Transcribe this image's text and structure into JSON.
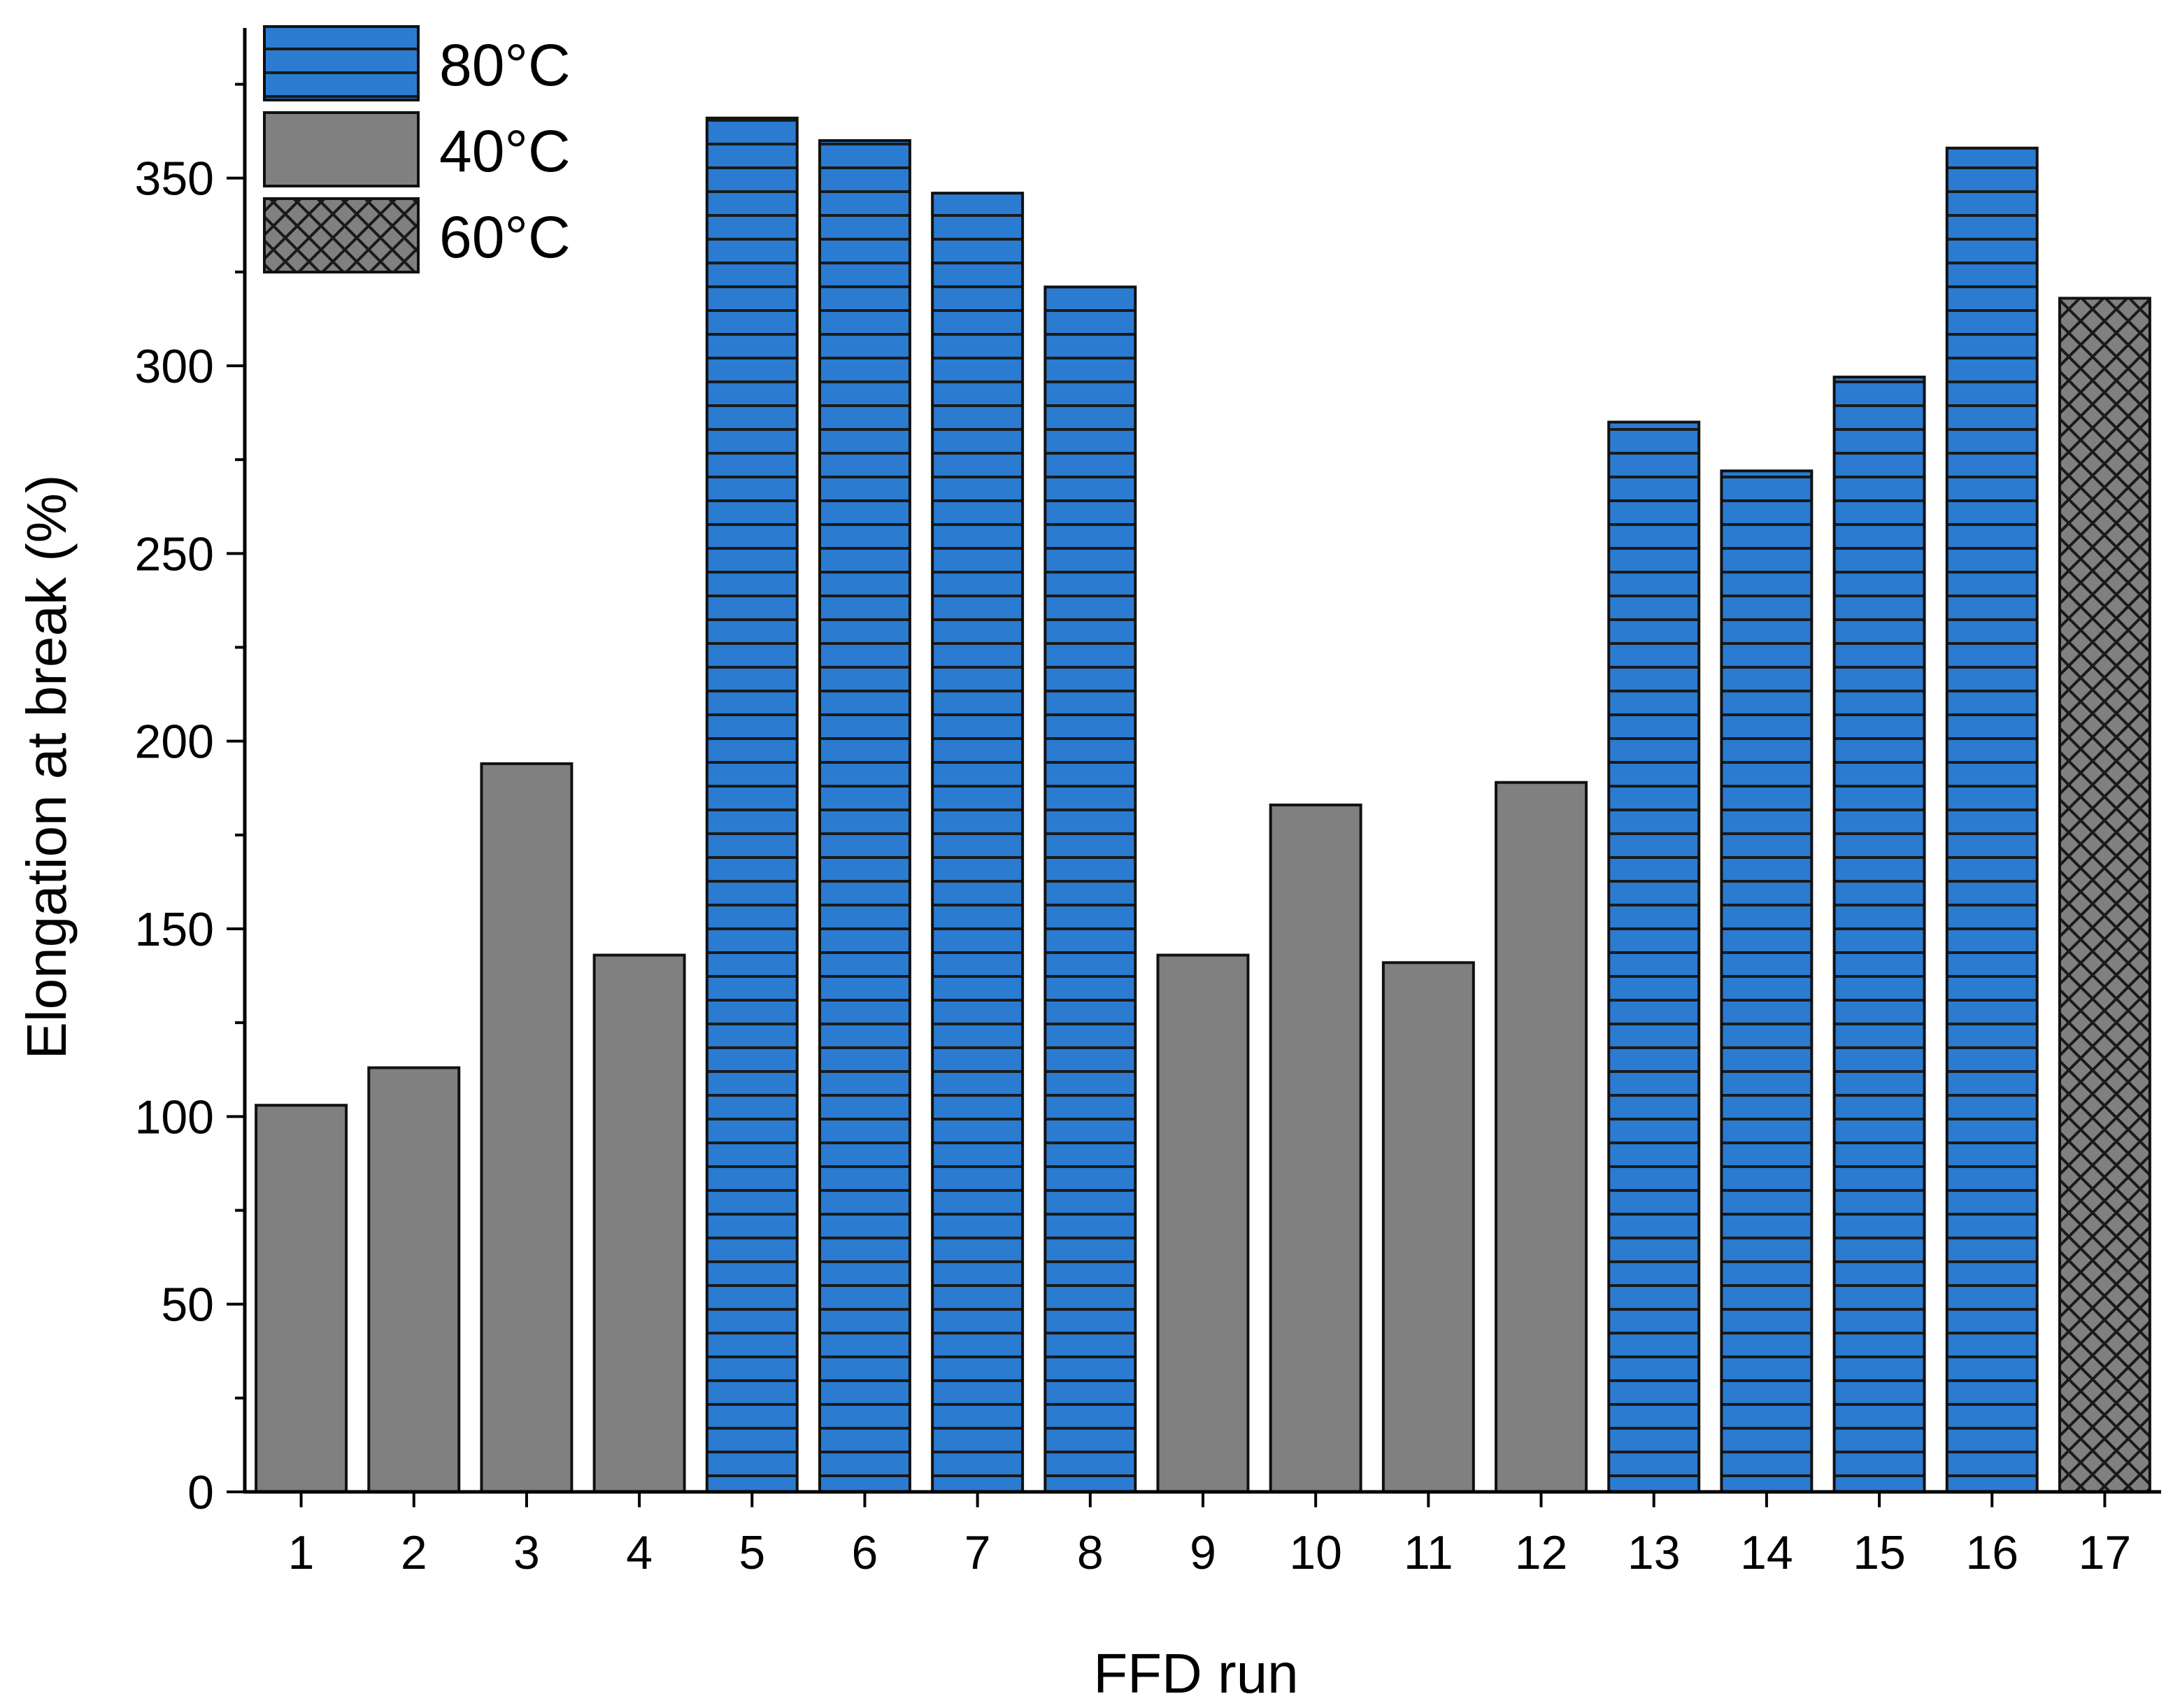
{
  "chart_data": {
    "type": "bar",
    "title": "",
    "xlabel": "FFD run",
    "ylabel": "Elongation at break (%)",
    "ylim": [
      0,
      390
    ],
    "yticks": [
      0,
      50,
      100,
      150,
      200,
      250,
      300,
      350
    ],
    "categories": [
      "1",
      "2",
      "3",
      "4",
      "5",
      "6",
      "7",
      "8",
      "9",
      "10",
      "11",
      "12",
      "13",
      "14",
      "15",
      "16",
      "17"
    ],
    "values": [
      103,
      113,
      194,
      143,
      366,
      360,
      346,
      321,
      143,
      183,
      141,
      189,
      285,
      272,
      297,
      358,
      318
    ],
    "groups": [
      "40°C",
      "40°C",
      "40°C",
      "40°C",
      "80°C",
      "80°C",
      "80°C",
      "80°C",
      "40°C",
      "40°C",
      "40°C",
      "40°C",
      "80°C",
      "80°C",
      "80°C",
      "80°C",
      "60°C"
    ],
    "legend": [
      {
        "label": "80°C",
        "pattern": "horizontal-lines",
        "color": "#2b7bd1"
      },
      {
        "label": "40°C",
        "pattern": "solid",
        "color": "#808080"
      },
      {
        "label": "60°C",
        "pattern": "crosshatch",
        "color": "#808080"
      }
    ],
    "legend_position": "top-left",
    "grid": false
  }
}
